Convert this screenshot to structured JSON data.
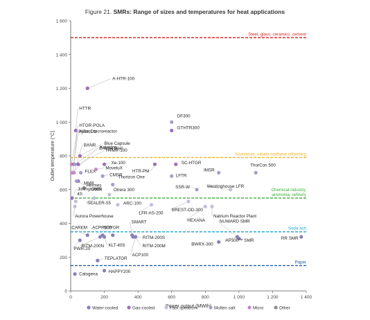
{
  "chart_data": {
    "type": "scatter",
    "title_prefix": "Figure 21. ",
    "title_main": "SMRs: Range of sizes and temperatures for heat applications",
    "xlabel": "Power output (MWth)",
    "ylabel": "Outlet temperature (°C)",
    "xlim": [
      0,
      1400
    ],
    "ylim": [
      0,
      1600
    ],
    "xticks": [
      0,
      200,
      400,
      600,
      800,
      1000,
      1200,
      1400
    ],
    "xtick_labels": [
      "0",
      "200",
      "400",
      "600",
      "800",
      "1 000",
      "1 200",
      "1 400"
    ],
    "yticks": [
      0,
      200,
      400,
      600,
      800,
      1000,
      1200,
      1400,
      1600
    ],
    "ytick_labels": [
      "0",
      "200",
      "400",
      "600",
      "800",
      "1 000",
      "1 200",
      "1 400",
      "1 600"
    ],
    "grid": false,
    "legend_position": "bottom",
    "categories": [
      {
        "key": "water",
        "name": "Water-cooled",
        "color": "#8a7fb7"
      },
      {
        "key": "gas",
        "name": "Gas-cooled",
        "color": "#9b6fb8"
      },
      {
        "key": "fast",
        "name": "Fast spectrum",
        "color": "#c3bedc"
      },
      {
        "key": "molten",
        "name": "Molten salt",
        "color": "#a59ec9"
      },
      {
        "key": "micro",
        "name": "Micro",
        "color": "#c58ac9"
      },
      {
        "key": "other",
        "name": "Other",
        "color": "#8c8c8c"
      }
    ],
    "reference_lines": [
      {
        "y": 1500,
        "label": "Steel, glass, ceramics, cement",
        "color": "#d42a2a"
      },
      {
        "y": 790,
        "label": "Aluminium, steam methane reforming",
        "color": "#f0b41e"
      },
      {
        "y": 550,
        "label": "Chemical industry,",
        "label2": "ammonia, refinery",
        "color": "#3aac3a"
      },
      {
        "y": 350,
        "label": "Soda ash",
        "color": "#1fa3cf"
      },
      {
        "y": 150,
        "label": "Paper",
        "color": "#1f5fa8"
      }
    ],
    "points": [
      {
        "name": "A-HTR-100",
        "x": 100,
        "y": 1200,
        "cat": "gas"
      },
      {
        "name": "HTTR",
        "x": 30,
        "y": 950,
        "cat": "gas"
      },
      {
        "name": "Pylon D1",
        "x": 5,
        "y": 750,
        "cat": "micro"
      },
      {
        "name": "eVinci microreactor",
        "x": 12,
        "y": 700,
        "cat": "micro"
      },
      {
        "name": "HTGR-POLA",
        "x": 18,
        "y": 750,
        "cat": "gas"
      },
      {
        "name": "BANR",
        "x": 20,
        "y": 700,
        "cat": "micro"
      },
      {
        "name": "Kaleidos",
        "x": 10,
        "y": 700,
        "cat": "micro"
      },
      {
        "name": "Energy Well",
        "x": 25,
        "y": 750,
        "cat": "molten"
      },
      {
        "name": "HTMR-100",
        "x": 45,
        "y": 750,
        "cat": "gas"
      },
      {
        "name": "Blue Capsule",
        "x": 55,
        "y": 800,
        "cat": "gas"
      },
      {
        "name": "Xe-100",
        "x": 200,
        "y": 750,
        "cat": "gas"
      },
      {
        "name": "FLEX",
        "x": 60,
        "y": 700,
        "cat": "molten"
      },
      {
        "name": "MoveluX",
        "x": 150,
        "y": 720,
        "cat": "micro"
      },
      {
        "name": "MMR",
        "x": 45,
        "y": 650,
        "cat": "gas"
      },
      {
        "name": "Hermes",
        "x": 35,
        "y": 650,
        "cat": "molten"
      },
      {
        "name": "CMSR",
        "x": 190,
        "y": 680,
        "cat": "molten"
      },
      {
        "name": "XAMR",
        "x": 80,
        "y": 610,
        "cat": "other"
      },
      {
        "name": "Jimmy SMR",
        "x": 8,
        "y": 550,
        "cat": "gas"
      },
      {
        "name": "Thorizon One",
        "x": 250,
        "y": 630,
        "cat": "molten"
      },
      {
        "name": "Otrera 300",
        "x": 230,
        "y": 570,
        "cat": "fast"
      },
      {
        "name": "4S",
        "x": 30,
        "y": 530,
        "cat": "fast"
      },
      {
        "name": "SEALER-55",
        "x": 140,
        "y": 550,
        "cat": "fast"
      },
      {
        "name": "ARC-100",
        "x": 280,
        "y": 510,
        "cat": "fast"
      },
      {
        "name": "Aurora Powerhouse",
        "x": 25,
        "y": 500,
        "cat": "fast"
      },
      {
        "name": "LFR-AS-200",
        "x": 480,
        "y": 510,
        "cat": "fast"
      },
      {
        "name": "DF300",
        "x": 600,
        "y": 1000,
        "cat": "molten"
      },
      {
        "name": "GTHTR300",
        "x": 600,
        "y": 950,
        "cat": "gas"
      },
      {
        "name": "SC-HTGR",
        "x": 625,
        "y": 750,
        "cat": "gas"
      },
      {
        "name": "HTR-PM",
        "x": 500,
        "y": 750,
        "cat": "gas"
      },
      {
        "name": "LFTR",
        "x": 600,
        "y": 680,
        "cat": "molten"
      },
      {
        "name": "IMSR",
        "x": 880,
        "y": 700,
        "cat": "molten"
      },
      {
        "name": "ThorCon 500",
        "x": 1100,
        "y": 700,
        "cat": "molten"
      },
      {
        "name": "SSR-W",
        "x": 750,
        "y": 600,
        "cat": "molten"
      },
      {
        "name": "Westinghouse LFR",
        "x": 950,
        "y": 600,
        "cat": "fast"
      },
      {
        "name": "BREST-OD-300",
        "x": 700,
        "y": 530,
        "cat": "fast"
      },
      {
        "name": "HEXANA",
        "x": 800,
        "y": 500,
        "cat": "fast"
      },
      {
        "name": "Natrium Reactor Plant",
        "x": 840,
        "y": 500,
        "cat": "fast"
      },
      {
        "name": "CAREM",
        "x": 100,
        "y": 330,
        "cat": "water"
      },
      {
        "name": "ACPR50S",
        "x": 190,
        "y": 330,
        "cat": "water"
      },
      {
        "name": "VOYGR",
        "x": 250,
        "y": 330,
        "cat": "water"
      },
      {
        "name": "SMART",
        "x": 365,
        "y": 330,
        "cat": "water"
      },
      {
        "name": "RITM-200S",
        "x": 370,
        "y": 320,
        "cat": "water"
      },
      {
        "name": "RITM-200N",
        "x": 175,
        "y": 320,
        "cat": "water"
      },
      {
        "name": "KLT-40S",
        "x": 200,
        "y": 320,
        "cat": "water"
      },
      {
        "name": "RITM-200M",
        "x": 385,
        "y": 320,
        "cat": "water"
      },
      {
        "name": "ACP100",
        "x": 385,
        "y": 320,
        "cat": "water"
      },
      {
        "name": "NUWARD SMR",
        "x": 1000,
        "y": 310,
        "cat": "water"
      },
      {
        "name": "AP300™ SMR",
        "x": 990,
        "y": 320,
        "cat": "water"
      },
      {
        "name": "BWRX-300",
        "x": 880,
        "y": 290,
        "cat": "water"
      },
      {
        "name": "RR SMR",
        "x": 1370,
        "y": 320,
        "cat": "water"
      },
      {
        "name": "PWR-20",
        "x": 55,
        "y": 300,
        "cat": "water"
      },
      {
        "name": "TEPLATOR",
        "x": 160,
        "y": 180,
        "cat": "water"
      },
      {
        "name": "Calogena",
        "x": 25,
        "y": 100,
        "cat": "water"
      },
      {
        "name": "HAPPY200",
        "x": 200,
        "y": 120,
        "cat": "water"
      }
    ]
  }
}
